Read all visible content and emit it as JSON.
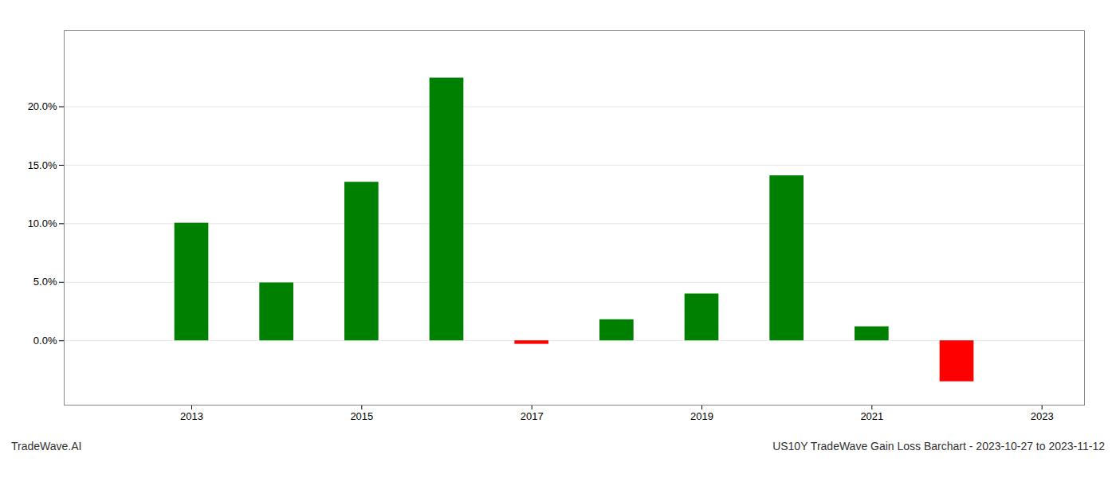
{
  "chart_data": {
    "type": "bar",
    "x": [
      2013,
      2014,
      2015,
      2016,
      2017,
      2018,
      2019,
      2020,
      2021,
      2022
    ],
    "values": [
      0.1005,
      0.0495,
      0.1355,
      0.2245,
      -0.003,
      0.018,
      0.04,
      0.141,
      0.012,
      -0.035
    ],
    "colors": [
      "#008000",
      "#008000",
      "#008000",
      "#008000",
      "#ff0000",
      "#008000",
      "#008000",
      "#008000",
      "#008000",
      "#ff0000"
    ],
    "xlim": [
      2011.5,
      2023.5
    ],
    "xticks": [
      2013,
      2015,
      2017,
      2019,
      2021,
      2023
    ],
    "ylim": [
      -0.055,
      0.265
    ],
    "yticks": [
      {
        "value": 0.0,
        "label": "0.0%"
      },
      {
        "value": 0.05,
        "label": "5.0%"
      },
      {
        "value": 0.1,
        "label": "10.0%"
      },
      {
        "value": 0.15,
        "label": "15.0%"
      },
      {
        "value": 0.2,
        "label": "20.0%"
      }
    ],
    "grid": true,
    "annotations": [
      "TradeWave.AI",
      "US10Y TradeWave Gain Loss Barchart - 2023-10-27 to 2023-11-12"
    ]
  }
}
